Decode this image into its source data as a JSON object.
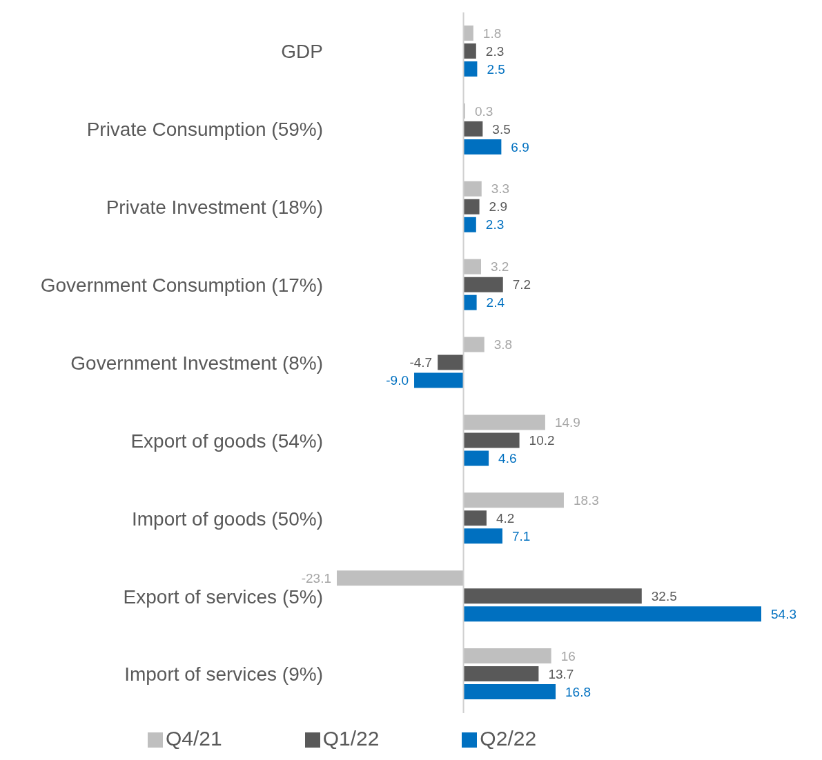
{
  "chart_data": {
    "type": "bar",
    "orientation": "horizontal",
    "legend": "bottom",
    "categories": [
      "GDP",
      "Private Consumption (59%)",
      "Private Investment (18%)",
      "Government Consumption (17%)",
      "Government Investment (8%)",
      "Export of goods (54%)",
      "Import of goods (50%)",
      "Export of services (5%)",
      "Import of services (9%)"
    ],
    "series": [
      {
        "name": "Q4/21",
        "color": "#bfbfbf",
        "values": [
          1.8,
          0.3,
          3.3,
          3.2,
          3.8,
          14.9,
          18.3,
          -23.1,
          16
        ],
        "value_labels": [
          "1.8",
          "0.3",
          "3.3",
          "3.2",
          "3.8",
          "14.9",
          "18.3",
          "-23.1",
          "16"
        ]
      },
      {
        "name": "Q1/22",
        "color": "#595959",
        "values": [
          2.3,
          3.5,
          2.9,
          7.2,
          -4.7,
          10.2,
          4.2,
          32.5,
          13.7
        ],
        "value_labels": [
          "2.3",
          "3.5",
          "2.9",
          "7.2",
          "-4.7",
          "10.2",
          "4.2",
          "32.5",
          "13.7"
        ]
      },
      {
        "name": "Q2/22",
        "color": "#0070c0",
        "values": [
          2.5,
          6.9,
          2.3,
          2.4,
          -9.0,
          4.6,
          7.1,
          54.3,
          16.8
        ],
        "value_labels": [
          "2.5",
          "6.9",
          "2.3",
          "2.4",
          "-9.0",
          "4.6",
          "7.1",
          "54.3",
          "16.8"
        ]
      }
    ]
  }
}
